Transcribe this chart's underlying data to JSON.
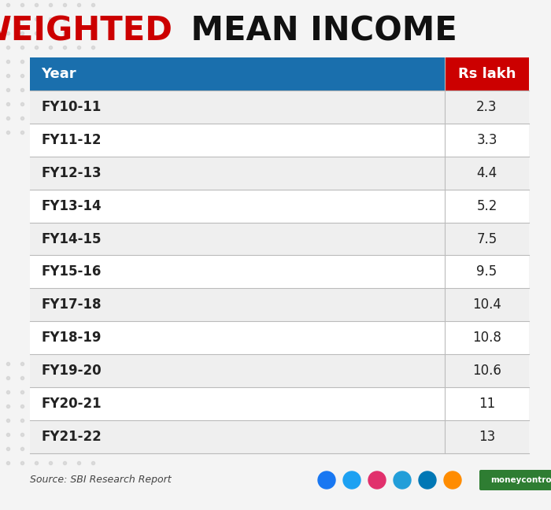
{
  "title_part1": "WEIGHTED",
  "title_part2": " MEAN INCOME",
  "title_color1": "#cc0000",
  "title_color2": "#111111",
  "title_fontsize": 30,
  "header_bg_color": "#1a6fad",
  "header_text_color": "#ffffff",
  "header_col1": "Year",
  "header_col2": "Rs lakh",
  "col2_bg_color": "#cc0000",
  "years": [
    "FY10-11",
    "FY11-12",
    "FY12-13",
    "FY13-14",
    "FY14-15",
    "FY15-16",
    "FY17-18",
    "FY18-19",
    "FY19-20",
    "FY20-21",
    "FY21-22"
  ],
  "values": [
    "2.3",
    "3.3",
    "4.4",
    "5.2",
    "7.5",
    "9.5",
    "10.4",
    "10.8",
    "10.6",
    "11",
    "13"
  ],
  "row_bg_even": "#efefef",
  "row_bg_odd": "#ffffff",
  "row_text_color": "#222222",
  "divider_color": "#bbbbbb",
  "source_text": "Source: SBI Research Report",
  "bg_color": "#f4f4f4",
  "icon_colors": [
    "#1877f2",
    "#1da1f2",
    "#e1306c",
    "#229ED9",
    "#0077b5",
    "#ff8c00"
  ],
  "mc_color": "#2e7d32"
}
